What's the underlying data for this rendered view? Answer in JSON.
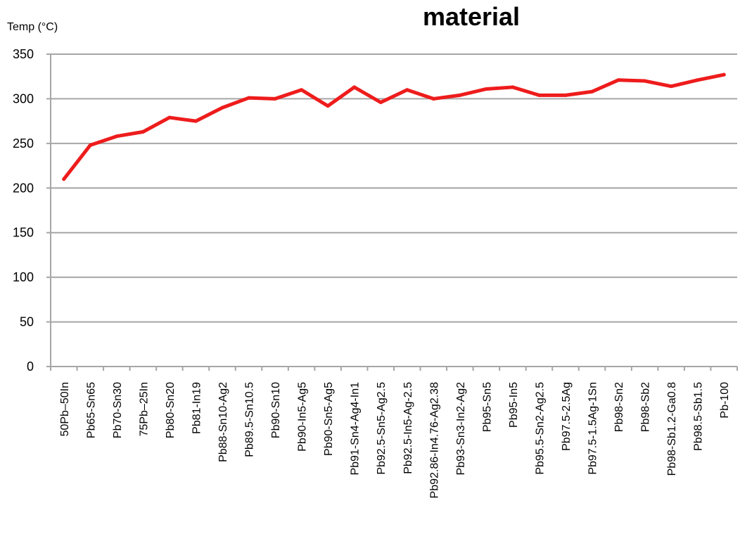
{
  "chart_data": {
    "type": "line",
    "title": "material",
    "ylabel": "Temp (°C)",
    "xlabel": "",
    "ylim": [
      0,
      350
    ],
    "yticks": [
      0,
      50,
      100,
      150,
      200,
      250,
      300,
      350
    ],
    "grid": "horizontal",
    "legend": "none",
    "line_color": "#ee1c1c",
    "grid_color": "#a6a6a6",
    "categories": [
      "50Pb–50In",
      "Pb65-Sn65",
      "Pb70-Sn30",
      "75Pb–25In",
      "Pb80-Sn20",
      "Pb81-In19",
      "Pb88-Sn10-Ag2",
      "Pb89.5-Sn10.5",
      "Pb90-Sn10",
      "Pb90-In5-Ag5",
      "Pb90-Sn5-Ag5",
      "Pb91-Sn4-Ag4-In1",
      "Pb92.5-Sn5-Ag2.5",
      "Pb92.5-In5-Ag-2.5",
      "Pb92.86-In4.76-Ag2.38",
      "Pb93-Sn3-In2-Ag2",
      "Pb95-Sn5",
      "Pb95-In5",
      "Pb95.5-Sn2-Ag2.5",
      "Pb97.5-2.5Ag",
      "Pb97.5-1.5Ag-1Sn",
      "Pb98-Sn2",
      "Pb98-Sb2",
      "Pb98-Sb1.2-Ga0.8",
      "Pb98.5-Sb1.5",
      "Pb-100"
    ],
    "series": [
      {
        "values": [
          210,
          248,
          258,
          263,
          279,
          275,
          290,
          301,
          300,
          310,
          292,
          313,
          296,
          310,
          300,
          304,
          311,
          313,
          304,
          304,
          308,
          321,
          320,
          314,
          321,
          327
        ]
      }
    ]
  }
}
